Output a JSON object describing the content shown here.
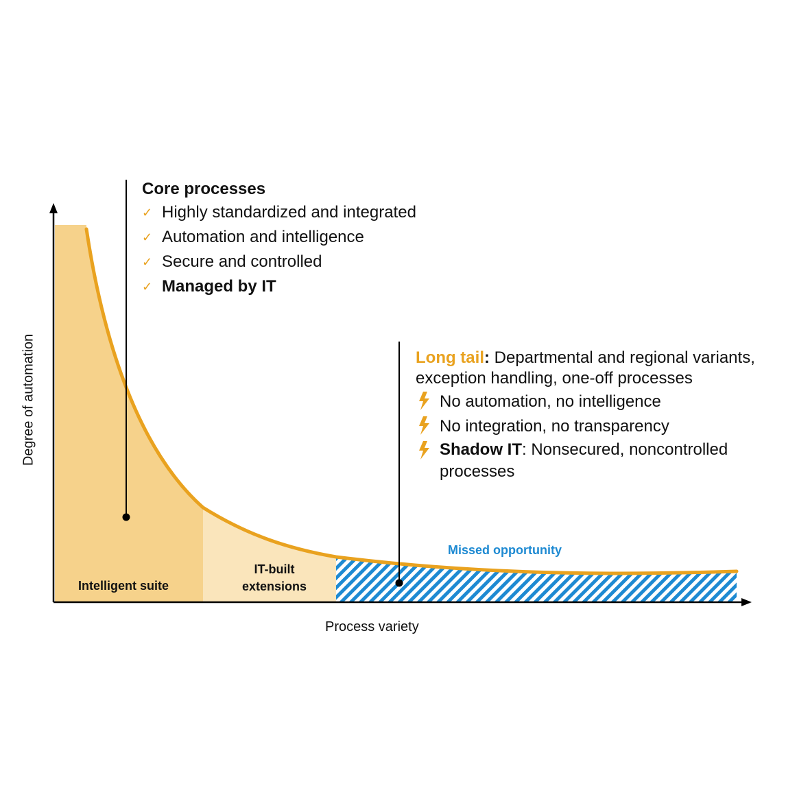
{
  "axes": {
    "x_label": "Process variety",
    "y_label": "Degree of automation"
  },
  "regions": {
    "intelligent_suite": "Intelligent suite",
    "it_built_line1": "IT-built",
    "it_built_line2": "extensions",
    "missed_opportunity": "Missed opportunity"
  },
  "core": {
    "title": "Core processes",
    "items": [
      "Highly standardized and integrated",
      "Automation and intelligence",
      "Secure and controlled",
      "Managed by IT"
    ]
  },
  "long_tail": {
    "label": "Long tail",
    "colon": ":",
    "description_line1": " Departmental and regional variants,",
    "description_line2": "exception handling, one-off processes",
    "items": [
      "No automation, no intelligence",
      "No integration, no transparency"
    ],
    "shadow_label": "Shadow IT",
    "shadow_text_line1": ": Nonsecured, noncontrolled",
    "shadow_text_line2": "processes"
  },
  "icons": {
    "check": "check-icon",
    "bolt": "lightning-bolt-icon"
  },
  "colors": {
    "curve": "#e9a21f",
    "suite_fill": "#f6d28b",
    "extensions_fill": "#fae5bb",
    "missed_stripe": "#1e8ad2",
    "axis": "#000000"
  }
}
